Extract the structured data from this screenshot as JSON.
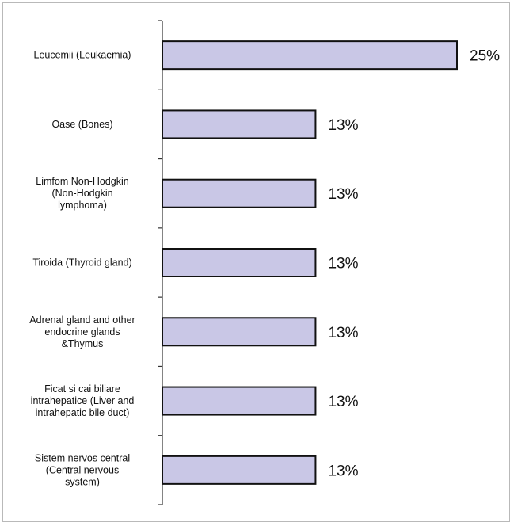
{
  "chart_data": {
    "type": "bar",
    "orientation": "horizontal",
    "categories": [
      [
        "Leucemii (Leukaemia)"
      ],
      [
        "Oase  (Bones)"
      ],
      [
        "Limfom Non-Hodgkin",
        "(Non-Hodgkin",
        "lymphoma)"
      ],
      [
        "Tiroida (Thyroid gland)"
      ],
      [
        "Adrenal gland and other",
        "endocrine glands",
        "&Thymus"
      ],
      [
        "Ficat si cai biliare",
        "intrahepatice (Liver and",
        "intrahepatic bile duct)"
      ],
      [
        "Sistem nervos central",
        "(Central nervous",
        "system)"
      ]
    ],
    "values": [
      25,
      13,
      13,
      13,
      13,
      13,
      13
    ],
    "value_labels": [
      "25%",
      "13%",
      "13%",
      "13%",
      "13%",
      "13%",
      "13%"
    ],
    "xlim": [
      0,
      25
    ],
    "grid": false,
    "legend": "none",
    "colors": {
      "bar_fill": "#c9c7e6",
      "bar_stroke": "#111111",
      "axis": "#333333"
    }
  }
}
